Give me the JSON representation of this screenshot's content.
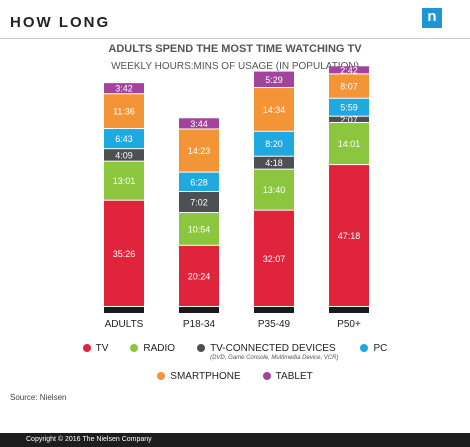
{
  "header": {
    "title": "HOW LONG",
    "logo_text": "n"
  },
  "chart_data": {
    "type": "bar",
    "stacked": true,
    "title": "ADULTS SPEND THE MOST TIME WATCHING TV",
    "subtitle": "WEEKLY HOURS:MINS OF USAGE (IN POPULATION)",
    "categories": [
      "ADULTS",
      "P18-34",
      "P35-49",
      "P50+"
    ],
    "series": [
      {
        "name": "TV",
        "color": "#e0243c",
        "values": [
          35.43,
          20.4,
          32.12,
          47.3
        ],
        "labels": [
          "35:26",
          "20:24",
          "32:07",
          "47:18"
        ]
      },
      {
        "name": "RADIO",
        "color": "#8cc63f",
        "values": [
          13.02,
          10.9,
          13.67,
          14.02
        ],
        "labels": [
          "13:01",
          "10:54",
          "13:40",
          "14:01"
        ]
      },
      {
        "name": "TV-CONNECTED DEVICES",
        "color": "#4d4f53",
        "values": [
          4.15,
          7.03,
          4.3,
          2.12
        ],
        "labels": [
          "4:09",
          "7:02",
          "4:18",
          "2:07"
        ]
      },
      {
        "name": "PC",
        "color": "#1fa9e1",
        "values": [
          6.72,
          6.47,
          8.33,
          5.98
        ],
        "labels": [
          "6:43",
          "6:28",
          "8:20",
          "5:59"
        ]
      },
      {
        "name": "SMARTPHONE",
        "color": "#f39536",
        "values": [
          11.6,
          14.38,
          14.57,
          8.12
        ],
        "labels": [
          "11:36",
          "14:23",
          "14:34",
          "8:07"
        ]
      },
      {
        "name": "TABLET",
        "color": "#a2449b",
        "values": [
          3.7,
          3.73,
          5.48,
          2.7
        ],
        "labels": [
          "3:42",
          "3:44",
          "5:29",
          "2:42"
        ]
      }
    ],
    "label_color_on_dark": "#ffffff",
    "label_color_on_tablet": "#ffffff"
  },
  "legend": {
    "items": [
      {
        "label": "TV",
        "color": "#e0243c"
      },
      {
        "label": "RADIO",
        "color": "#8cc63f"
      },
      {
        "label": "TV-CONNECTED DEVICES",
        "sub": "(DVD, Game Console, Multimedia Device, VCR)",
        "color": "#4d4f53"
      },
      {
        "label": "PC",
        "color": "#1fa9e1"
      },
      {
        "label": "SMARTPHONE",
        "color": "#f39536"
      },
      {
        "label": "TABLET",
        "color": "#a2449b"
      }
    ]
  },
  "source": "Source: Nielsen",
  "footer": {
    "copyright": "Copyright © 2016 The Nielsen Company"
  }
}
